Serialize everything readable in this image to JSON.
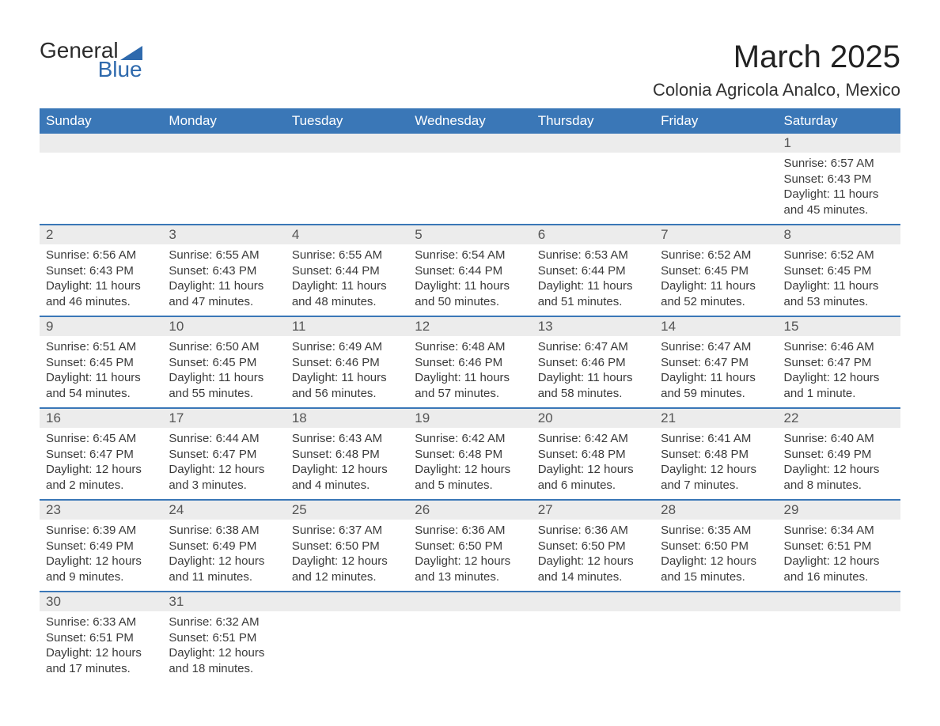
{
  "logo": {
    "text1": "General",
    "text2": "Blue"
  },
  "title": "March 2025",
  "location": "Colonia Agricola Analco, Mexico",
  "colors": {
    "header_bg": "#3a77b7",
    "header_text": "#ffffff",
    "day_bg": "#ececec",
    "border": "#3a77b7"
  },
  "weekdays": [
    "Sunday",
    "Monday",
    "Tuesday",
    "Wednesday",
    "Thursday",
    "Friday",
    "Saturday"
  ],
  "weeks": [
    {
      "numbers": [
        "",
        "",
        "",
        "",
        "",
        "",
        "1"
      ],
      "details": [
        "",
        "",
        "",
        "",
        "",
        "",
        "Sunrise: 6:57 AM\nSunset: 6:43 PM\nDaylight: 11 hours and 45 minutes."
      ]
    },
    {
      "numbers": [
        "2",
        "3",
        "4",
        "5",
        "6",
        "7",
        "8"
      ],
      "details": [
        "Sunrise: 6:56 AM\nSunset: 6:43 PM\nDaylight: 11 hours and 46 minutes.",
        "Sunrise: 6:55 AM\nSunset: 6:43 PM\nDaylight: 11 hours and 47 minutes.",
        "Sunrise: 6:55 AM\nSunset: 6:44 PM\nDaylight: 11 hours and 48 minutes.",
        "Sunrise: 6:54 AM\nSunset: 6:44 PM\nDaylight: 11 hours and 50 minutes.",
        "Sunrise: 6:53 AM\nSunset: 6:44 PM\nDaylight: 11 hours and 51 minutes.",
        "Sunrise: 6:52 AM\nSunset: 6:45 PM\nDaylight: 11 hours and 52 minutes.",
        "Sunrise: 6:52 AM\nSunset: 6:45 PM\nDaylight: 11 hours and 53 minutes."
      ]
    },
    {
      "numbers": [
        "9",
        "10",
        "11",
        "12",
        "13",
        "14",
        "15"
      ],
      "details": [
        "Sunrise: 6:51 AM\nSunset: 6:45 PM\nDaylight: 11 hours and 54 minutes.",
        "Sunrise: 6:50 AM\nSunset: 6:45 PM\nDaylight: 11 hours and 55 minutes.",
        "Sunrise: 6:49 AM\nSunset: 6:46 PM\nDaylight: 11 hours and 56 minutes.",
        "Sunrise: 6:48 AM\nSunset: 6:46 PM\nDaylight: 11 hours and 57 minutes.",
        "Sunrise: 6:47 AM\nSunset: 6:46 PM\nDaylight: 11 hours and 58 minutes.",
        "Sunrise: 6:47 AM\nSunset: 6:47 PM\nDaylight: 11 hours and 59 minutes.",
        "Sunrise: 6:46 AM\nSunset: 6:47 PM\nDaylight: 12 hours and 1 minute."
      ]
    },
    {
      "numbers": [
        "16",
        "17",
        "18",
        "19",
        "20",
        "21",
        "22"
      ],
      "details": [
        "Sunrise: 6:45 AM\nSunset: 6:47 PM\nDaylight: 12 hours and 2 minutes.",
        "Sunrise: 6:44 AM\nSunset: 6:47 PM\nDaylight: 12 hours and 3 minutes.",
        "Sunrise: 6:43 AM\nSunset: 6:48 PM\nDaylight: 12 hours and 4 minutes.",
        "Sunrise: 6:42 AM\nSunset: 6:48 PM\nDaylight: 12 hours and 5 minutes.",
        "Sunrise: 6:42 AM\nSunset: 6:48 PM\nDaylight: 12 hours and 6 minutes.",
        "Sunrise: 6:41 AM\nSunset: 6:48 PM\nDaylight: 12 hours and 7 minutes.",
        "Sunrise: 6:40 AM\nSunset: 6:49 PM\nDaylight: 12 hours and 8 minutes."
      ]
    },
    {
      "numbers": [
        "23",
        "24",
        "25",
        "26",
        "27",
        "28",
        "29"
      ],
      "details": [
        "Sunrise: 6:39 AM\nSunset: 6:49 PM\nDaylight: 12 hours and 9 minutes.",
        "Sunrise: 6:38 AM\nSunset: 6:49 PM\nDaylight: 12 hours and 11 minutes.",
        "Sunrise: 6:37 AM\nSunset: 6:50 PM\nDaylight: 12 hours and 12 minutes.",
        "Sunrise: 6:36 AM\nSunset: 6:50 PM\nDaylight: 12 hours and 13 minutes.",
        "Sunrise: 6:36 AM\nSunset: 6:50 PM\nDaylight: 12 hours and 14 minutes.",
        "Sunrise: 6:35 AM\nSunset: 6:50 PM\nDaylight: 12 hours and 15 minutes.",
        "Sunrise: 6:34 AM\nSunset: 6:51 PM\nDaylight: 12 hours and 16 minutes."
      ]
    },
    {
      "numbers": [
        "30",
        "31",
        "",
        "",
        "",
        "",
        ""
      ],
      "details": [
        "Sunrise: 6:33 AM\nSunset: 6:51 PM\nDaylight: 12 hours and 17 minutes.",
        "Sunrise: 6:32 AM\nSunset: 6:51 PM\nDaylight: 12 hours and 18 minutes.",
        "",
        "",
        "",
        "",
        ""
      ]
    }
  ]
}
